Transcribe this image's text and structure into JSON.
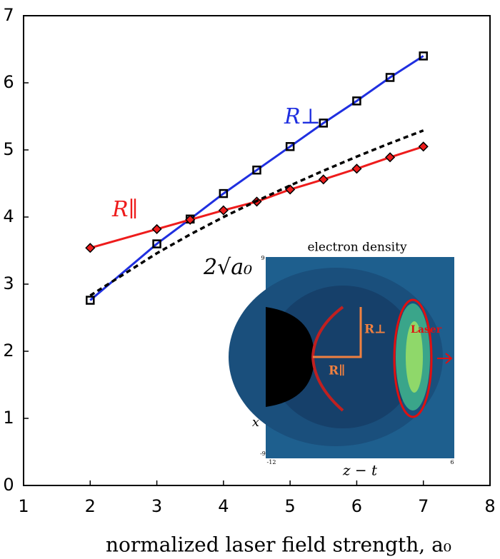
{
  "chart_data": {
    "type": "line",
    "xlabel": "normalized laser field strength, a₀",
    "x": [
      2,
      3,
      3.5,
      4,
      4.5,
      5,
      5.5,
      6,
      6.5,
      7
    ],
    "series": [
      {
        "name": "R⊥",
        "color": "#1f2fe0",
        "marker": "square",
        "values": [
          2.76,
          3.6,
          3.97,
          4.35,
          4.7,
          5.05,
          5.4,
          5.73,
          6.08,
          6.4
        ]
      },
      {
        "name": "R∥",
        "color": "#ee1c1c",
        "marker": "diamond",
        "values": [
          3.54,
          3.82,
          3.96,
          4.1,
          4.23,
          4.41,
          4.56,
          4.72,
          4.89,
          5.05
        ]
      },
      {
        "name": "2√a₀",
        "color": "#000000",
        "dash": true,
        "values": [
          2.83,
          3.46,
          3.74,
          4.0,
          4.24,
          4.47,
          4.69,
          4.9,
          5.1,
          5.29
        ]
      }
    ],
    "xlim": [
      1,
      8
    ],
    "ylim": [
      0,
      7
    ],
    "xticks": [
      1,
      2,
      3,
      4,
      5,
      6,
      7,
      8
    ],
    "yticks": [
      0,
      1,
      2,
      3,
      4,
      5,
      6,
      7
    ],
    "grid": false,
    "inset": {
      "title": "electron density",
      "xlabel": "z − t",
      "ylabel": "x",
      "xticks": [
        -12,
        6
      ],
      "yticks": [
        -9,
        9
      ],
      "labels": [
        "R⊥",
        "R∥",
        "Laser"
      ]
    }
  }
}
